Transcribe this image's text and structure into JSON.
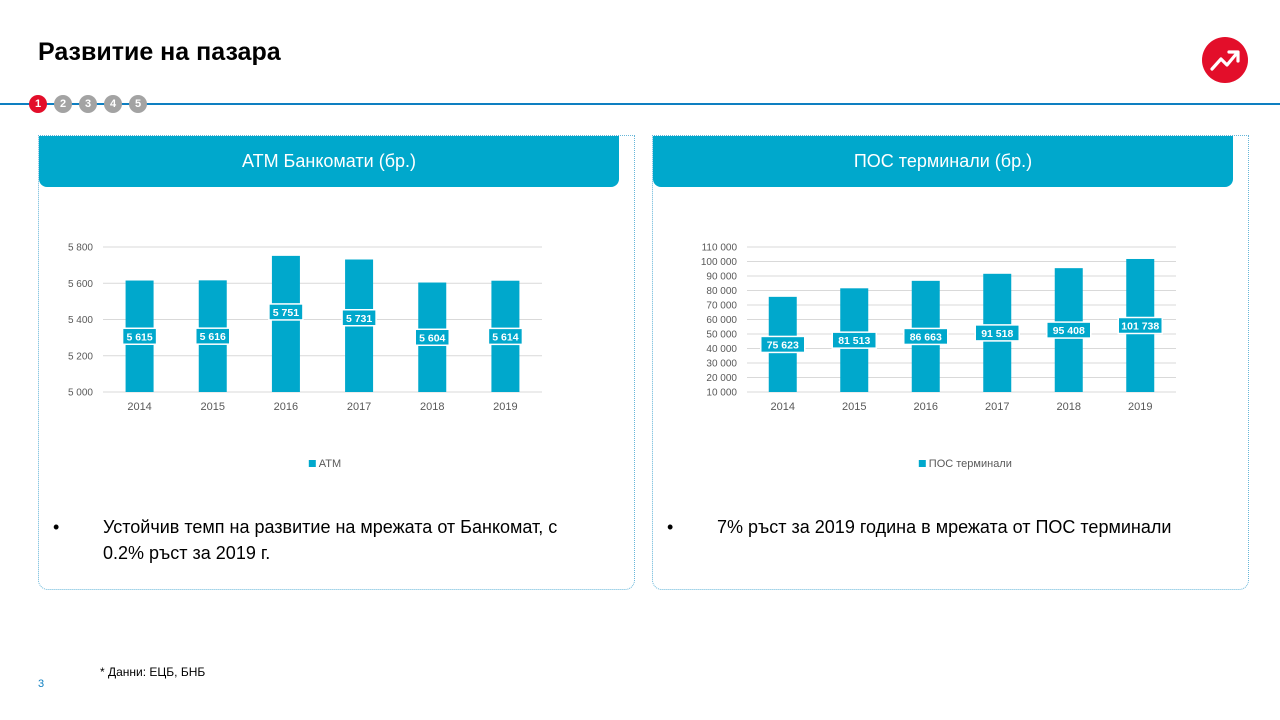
{
  "page_title": "Развитие на пазара",
  "steps": [
    "1",
    "2",
    "3",
    "4",
    "5"
  ],
  "active_step": "1",
  "brand_color": "#e30e2a",
  "accent_color": "#00a8cc",
  "panels": {
    "left": {
      "header": "АТМ Банкомати (бр.)",
      "bullet": "Устойчив темп на развитие на мрежата от Банкомат, с 0.2% ръст за 2019 г."
    },
    "right": {
      "header": "ПОС терминали (бр.)",
      "bullet": "7% ръст за 2019 година в мрежата от ПОС терминали"
    }
  },
  "chart_data": [
    {
      "type": "bar",
      "categories": [
        "2014",
        "2015",
        "2016",
        "2017",
        "2018",
        "2019"
      ],
      "series": [
        {
          "name": "АТМ",
          "values": [
            5615,
            5616,
            5751,
            5731,
            5604,
            5614
          ]
        }
      ],
      "value_labels": [
        "5 615",
        "5 616",
        "5 751",
        "5 731",
        "5 604",
        "5 614"
      ],
      "yticks": [
        "5 000",
        "5 200",
        "5 400",
        "5 600",
        "5 800"
      ],
      "ylim": [
        5000,
        5800
      ],
      "ytick_step": 200,
      "grid": true,
      "legend_position": "bottom",
      "color": "#00a8cc"
    },
    {
      "type": "bar",
      "categories": [
        "2014",
        "2015",
        "2016",
        "2017",
        "2018",
        "2019"
      ],
      "series": [
        {
          "name": "ПОС терминали",
          "values": [
            75623,
            81513,
            86663,
            91518,
            95408,
            101738
          ]
        }
      ],
      "value_labels": [
        "75 623",
        "81 513",
        "86 663",
        "91 518",
        "95 408",
        "101 738"
      ],
      "yticks": [
        "10 000",
        "20 000",
        "30 000",
        "40 000",
        "50 000",
        "60 000",
        "70 000",
        "80 000",
        "90 000",
        "100 000",
        "110 000"
      ],
      "ylim": [
        10000,
        110000
      ],
      "ytick_step": 10000,
      "grid": true,
      "legend_position": "bottom",
      "color": "#00a8cc"
    }
  ],
  "footnote": "* Данни: ЕЦБ, БНБ",
  "page_number": "3",
  "icons": {
    "logo": "trend-up-arrow-icon"
  }
}
